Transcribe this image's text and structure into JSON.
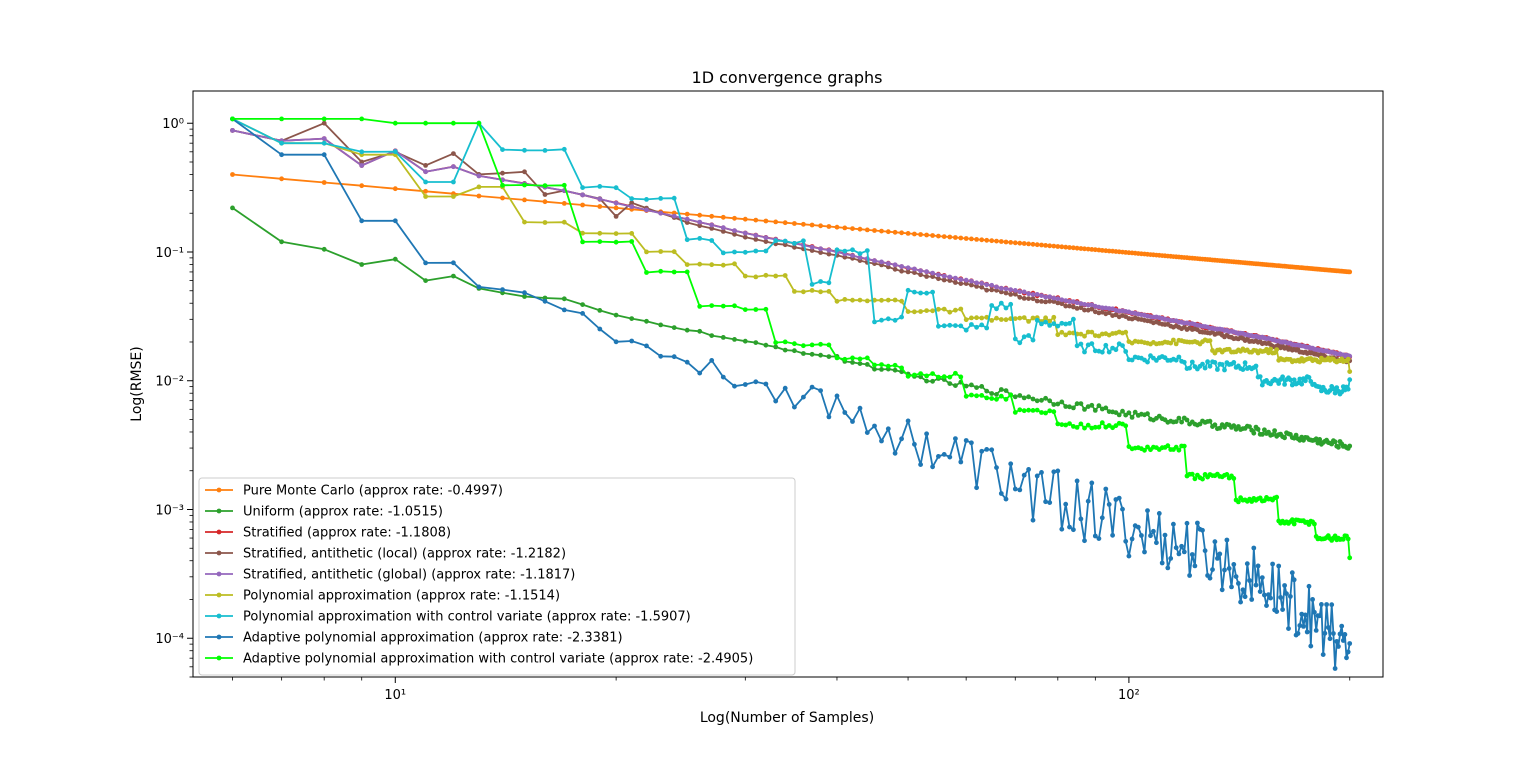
{
  "chart_data": {
    "type": "line",
    "title": "1D convergence graphs",
    "xlabel": "Log(Number of Samples)",
    "ylabel": "Log(RMSE)",
    "xscale": "log",
    "yscale": "log",
    "xlim": [
      5.3,
      222
    ],
    "ylim": [
      5e-05,
      1.78
    ],
    "x_range_samples": [
      6,
      200
    ],
    "grid": false,
    "legend_position": "lower-left",
    "x_ticks": [
      {
        "value": 10,
        "label": "10^1"
      },
      {
        "value": 100,
        "label": "10^2"
      }
    ],
    "y_ticks": [
      {
        "value": 1,
        "label": "10^0"
      },
      {
        "value": 0.1,
        "label": "10^-1"
      },
      {
        "value": 0.01,
        "label": "10^-2"
      },
      {
        "value": 0.001,
        "label": "10^-3"
      },
      {
        "value": 0.0001,
        "label": "10^-4"
      }
    ],
    "series": [
      {
        "name": "Pure Monte Carlo (approx rate: -0.4997)",
        "color": "#ff7f0e",
        "anchors": [
          [
            6,
            0.4
          ],
          [
            200,
            0.07
          ]
        ],
        "noise": 0
      },
      {
        "name": "Uniform (approx rate: -1.0515)",
        "color": "#2ca02c",
        "anchors": [
          [
            6,
            0.22
          ],
          [
            7,
            0.12
          ],
          [
            8,
            0.105
          ],
          [
            9,
            0.08
          ],
          [
            10,
            0.088
          ],
          [
            11,
            0.06
          ],
          [
            12,
            0.065
          ],
          [
            13,
            0.052
          ],
          [
            15,
            0.045
          ],
          [
            17,
            0.043
          ],
          [
            20,
            0.032
          ],
          [
            25,
            0.025
          ],
          [
            30,
            0.02
          ],
          [
            40,
            0.015
          ],
          [
            50,
            0.011
          ],
          [
            70,
            0.0078
          ],
          [
            100,
            0.0055
          ],
          [
            150,
            0.0041
          ],
          [
            200,
            0.0031
          ]
        ],
        "noise": 0.06
      },
      {
        "name": "Stratified (approx rate: -1.1808)",
        "color": "#d62728",
        "anchors": [
          [
            6,
            0.88
          ],
          [
            7,
            0.73
          ],
          [
            8,
            0.76
          ],
          [
            9,
            0.47
          ],
          [
            10,
            0.61
          ],
          [
            11,
            0.42
          ],
          [
            12,
            0.46
          ],
          [
            13,
            0.39
          ],
          [
            15,
            0.34
          ],
          [
            17,
            0.3
          ],
          [
            20,
            0.24
          ],
          [
            25,
            0.18
          ],
          [
            30,
            0.14
          ],
          [
            40,
            0.1
          ],
          [
            50,
            0.075
          ],
          [
            70,
            0.05
          ],
          [
            100,
            0.034
          ],
          [
            150,
            0.022
          ],
          [
            200,
            0.0155
          ]
        ],
        "noise": 0.02
      },
      {
        "name": "Stratified, antithetic (local) (approx rate: -1.2182)",
        "color": "#8c564b",
        "anchors": [
          [
            6,
            0.88
          ],
          [
            7,
            0.73
          ],
          [
            8,
            1.0
          ],
          [
            9,
            0.5
          ],
          [
            10,
            0.6
          ],
          [
            11,
            0.47
          ],
          [
            12,
            0.58
          ],
          [
            13,
            0.4
          ],
          [
            15,
            0.42
          ],
          [
            16,
            0.28
          ],
          [
            17,
            0.3
          ],
          [
            19,
            0.26
          ],
          [
            20,
            0.19
          ],
          [
            21,
            0.24
          ],
          [
            25,
            0.17
          ],
          [
            30,
            0.13
          ],
          [
            40,
            0.094
          ],
          [
            50,
            0.07
          ],
          [
            70,
            0.046
          ],
          [
            100,
            0.031
          ],
          [
            150,
            0.02
          ],
          [
            200,
            0.014
          ]
        ],
        "noise": 0.025
      },
      {
        "name": "Stratified, antithetic (global) (approx rate: -1.1817)",
        "color": "#9467bd",
        "anchors": [
          [
            6,
            0.88
          ],
          [
            7,
            0.73
          ],
          [
            8,
            0.76
          ],
          [
            9,
            0.47
          ],
          [
            10,
            0.61
          ],
          [
            11,
            0.42
          ],
          [
            12,
            0.46
          ],
          [
            13,
            0.39
          ],
          [
            15,
            0.34
          ],
          [
            17,
            0.3
          ],
          [
            20,
            0.24
          ],
          [
            25,
            0.18
          ],
          [
            30,
            0.14
          ],
          [
            40,
            0.1
          ],
          [
            50,
            0.075
          ],
          [
            70,
            0.05
          ],
          [
            100,
            0.034
          ],
          [
            150,
            0.022
          ],
          [
            200,
            0.0155
          ]
        ],
        "noise": 0.01
      },
      {
        "name": "Polynomial approximation (approx rate: -1.1514)",
        "color": "#bcbd22",
        "steps": [
          [
            6,
            1.08
          ],
          [
            7,
            0.7
          ],
          [
            9,
            0.57
          ],
          [
            11,
            0.27
          ],
          [
            13,
            0.32
          ],
          [
            15,
            0.17
          ],
          [
            18,
            0.14
          ],
          [
            20,
            0.14
          ],
          [
            22,
            0.1
          ],
          [
            25,
            0.08
          ],
          [
            30,
            0.065
          ],
          [
            35,
            0.05
          ],
          [
            40,
            0.042
          ],
          [
            50,
            0.035
          ],
          [
            60,
            0.03
          ],
          [
            80,
            0.023
          ],
          [
            100,
            0.02
          ],
          [
            130,
            0.017
          ],
          [
            160,
            0.0145
          ],
          [
            200,
            0.012
          ]
        ],
        "noise": 0.04
      },
      {
        "name": "Polynomial approximation with control variate (approx rate: -1.5907)",
        "color": "#17becf",
        "steps": [
          [
            6,
            1.08
          ],
          [
            7,
            0.7
          ],
          [
            9,
            0.6
          ],
          [
            11,
            0.35
          ],
          [
            13,
            1.0
          ],
          [
            14,
            0.62
          ],
          [
            18,
            0.32
          ],
          [
            21,
            0.26
          ],
          [
            25,
            0.125
          ],
          [
            28,
            0.1
          ],
          [
            33,
            0.12
          ],
          [
            37,
            0.057
          ],
          [
            40,
            0.1
          ],
          [
            45,
            0.03
          ],
          [
            50,
            0.05
          ],
          [
            55,
            0.026
          ],
          [
            65,
            0.038
          ],
          [
            70,
            0.021
          ],
          [
            75,
            0.028
          ],
          [
            85,
            0.018
          ],
          [
            100,
            0.015
          ],
          [
            120,
            0.013
          ],
          [
            150,
            0.01
          ],
          [
            180,
            0.0085
          ],
          [
            200,
            0.0095
          ]
        ],
        "noise": 0.08
      },
      {
        "name": "Adaptive polynomial approximation (approx rate: -2.3381)",
        "color": "#1f77b4",
        "anchors": [
          [
            6,
            1.08
          ],
          [
            7,
            0.57
          ],
          [
            8,
            0.57
          ],
          [
            9,
            0.175
          ],
          [
            10,
            0.175
          ],
          [
            11,
            0.082
          ],
          [
            12,
            0.082
          ],
          [
            13,
            0.053
          ],
          [
            14,
            0.053
          ],
          [
            16,
            0.044
          ],
          [
            18,
            0.032
          ],
          [
            20,
            0.022
          ],
          [
            25,
            0.014
          ],
          [
            30,
            0.01
          ],
          [
            40,
            0.0065
          ],
          [
            50,
            0.0035
          ],
          [
            60,
            0.0024
          ],
          [
            70,
            0.0016
          ],
          [
            90,
            0.0009
          ],
          [
            110,
            0.0006
          ],
          [
            140,
            0.00035
          ],
          [
            170,
            0.00018
          ],
          [
            200,
            8e-05
          ]
        ],
        "noise": 0.35
      },
      {
        "name": "Adaptive polynomial approximation with control variate (approx rate: -2.4905)",
        "color": "#00ff00",
        "steps": [
          [
            6,
            1.08
          ],
          [
            10,
            1.0
          ],
          [
            13,
            1.0
          ],
          [
            14,
            0.33
          ],
          [
            17,
            0.33
          ],
          [
            18,
            0.12
          ],
          [
            21,
            0.12
          ],
          [
            22,
            0.07
          ],
          [
            25,
            0.07
          ],
          [
            26,
            0.038
          ],
          [
            30,
            0.036
          ],
          [
            33,
            0.02
          ],
          [
            35,
            0.019
          ],
          [
            40,
            0.015
          ],
          [
            45,
            0.013
          ],
          [
            50,
            0.011
          ],
          [
            60,
            0.0075
          ],
          [
            70,
            0.0058
          ],
          [
            80,
            0.0045
          ],
          [
            100,
            0.003
          ],
          [
            120,
            0.0018
          ],
          [
            140,
            0.0012
          ],
          [
            160,
            0.0008
          ],
          [
            180,
            0.0006
          ],
          [
            200,
            0.00043
          ]
        ],
        "noise": 0.05
      }
    ]
  }
}
